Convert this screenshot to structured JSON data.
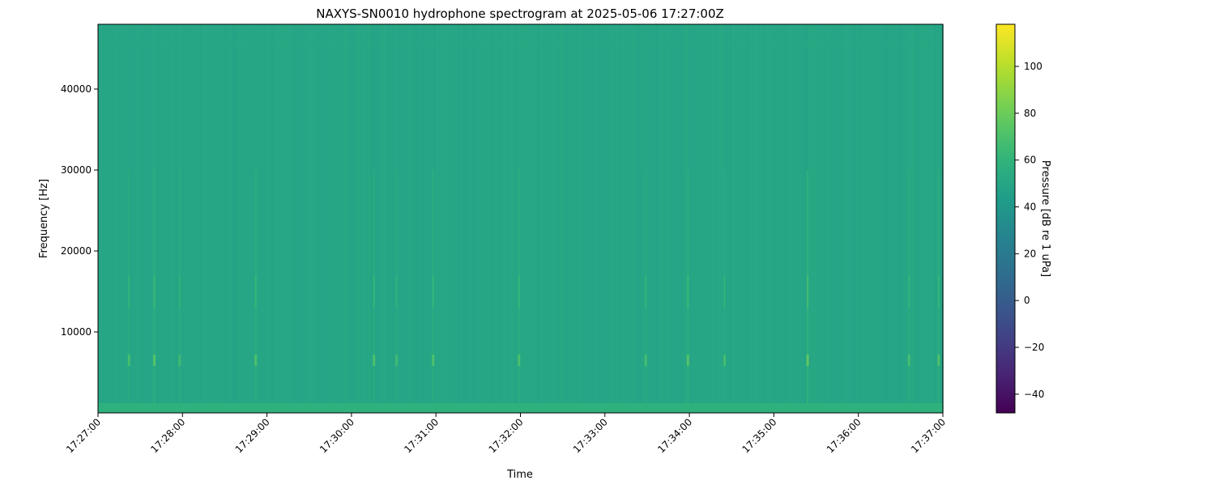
{
  "chart_data": {
    "type": "heatmap",
    "title": "NAXYS-SN0010 hydrophone spectrogram at 2025-05-06 17:27:00Z",
    "xlabel": "Time",
    "ylabel": "Frequency [Hz]",
    "colorbar_label": "Pressure [dB re 1 uPa]",
    "colormap": "viridis",
    "x_range": [
      "17:27:00",
      "17:37:00"
    ],
    "x_ticks": [
      "17:27:00",
      "17:28:00",
      "17:29:00",
      "17:30:00",
      "17:31:00",
      "17:32:00",
      "17:33:00",
      "17:34:00",
      "17:35:00",
      "17:36:00",
      "17:37:00"
    ],
    "ylim": [
      0,
      48000
    ],
    "y_ticks": [
      10000,
      20000,
      30000,
      40000
    ],
    "color_range": [
      -48,
      118
    ],
    "color_ticks": [
      -40,
      -20,
      0,
      20,
      40,
      60,
      80,
      100
    ],
    "background_level_db": 50,
    "low_frequency_band_db": 58,
    "transient_events": [
      {
        "time": "17:27:22",
        "peak_db": 68
      },
      {
        "time": "17:27:40",
        "peak_db": 72
      },
      {
        "time": "17:27:58",
        "peak_db": 66
      },
      {
        "time": "17:28:52",
        "peak_db": 70
      },
      {
        "time": "17:30:16",
        "peak_db": 70
      },
      {
        "time": "17:30:32",
        "peak_db": 66
      },
      {
        "time": "17:30:58",
        "peak_db": 70
      },
      {
        "time": "17:31:59",
        "peak_db": 70
      },
      {
        "time": "17:33:29",
        "peak_db": 68
      },
      {
        "time": "17:33:59",
        "peak_db": 72
      },
      {
        "time": "17:34:25",
        "peak_db": 68
      },
      {
        "time": "17:35:24",
        "peak_db": 76
      },
      {
        "time": "17:36:36",
        "peak_db": 68
      },
      {
        "time": "17:36:57",
        "peak_db": 70
      }
    ],
    "grid": false
  }
}
